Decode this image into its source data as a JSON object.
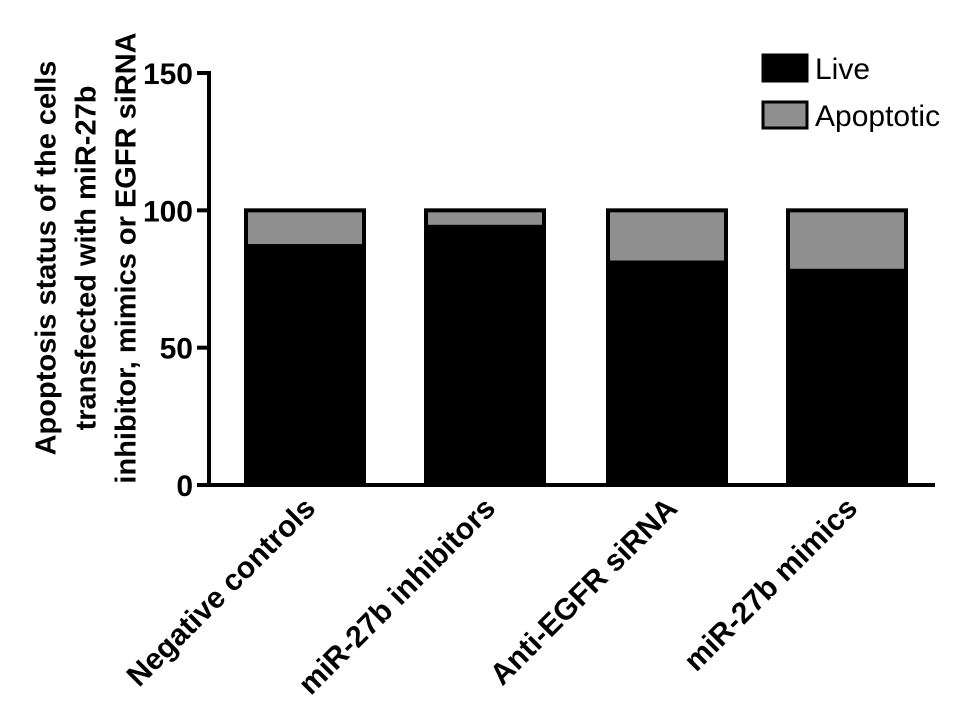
{
  "chart_data": {
    "type": "bar",
    "stacked": true,
    "title": "",
    "xlabel": "",
    "ylabel_lines": [
      "Apoptosis status of the cells",
      "transfected with miR-27b",
      "inhibitor, mimics or EGFR siRNA"
    ],
    "categories": [
      "Negative controls",
      "miR-27b inhibitors",
      "Anti-EGFR siRNA",
      "miR-27b mimics"
    ],
    "series": [
      {
        "name": "Live",
        "values": [
          87,
          94,
          81,
          78
        ],
        "color": "#000000"
      },
      {
        "name": "Apoptotic",
        "values": [
          13,
          6,
          19,
          22
        ],
        "color": "#8f8f8f"
      }
    ],
    "ylim": [
      0,
      150
    ],
    "yticks": [
      "0",
      "50",
      "100",
      "150"
    ],
    "grid": false,
    "legend_position": "top-right"
  }
}
